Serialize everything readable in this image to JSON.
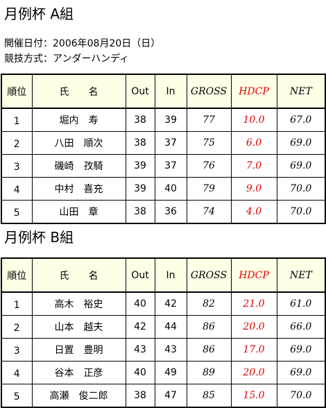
{
  "sections": [
    {
      "title": "月例杯 A組",
      "info": [
        "開催日付：2006年08月20日（日）",
        "競技方式：アンダーハンディ"
      ],
      "table": {
        "headers": [
          "順位",
          "氏　　名",
          "Out",
          "In",
          "GROSS",
          "HDCP",
          "NET"
        ],
        "rows": [
          [
            "1",
            "堀内　寿",
            "38",
            "39",
            "77",
            "10.0",
            "67.0"
          ],
          [
            "2",
            "八田　順次",
            "38",
            "37",
            "75",
            "6.0",
            "69.0"
          ],
          [
            "3",
            "磯崎　孜騎",
            "39",
            "37",
            "76",
            "7.0",
            "69.0"
          ],
          [
            "4",
            "中村　喜充",
            "39",
            "40",
            "79",
            "9.0",
            "70.0"
          ],
          [
            "5",
            "山田　章",
            "38",
            "36",
            "74",
            "4.0",
            "70.0"
          ]
        ]
      }
    },
    {
      "title": "月例杯 B組",
      "info": [],
      "table": {
        "headers": [
          "順位",
          "氏　　名",
          "Out",
          "In",
          "GROSS",
          "HDCP",
          "NET"
        ],
        "rows": [
          [
            "1",
            "高木　裕史",
            "40",
            "42",
            "82",
            "21.0",
            "61.0"
          ],
          [
            "2",
            "山本　越夫",
            "42",
            "44",
            "86",
            "20.0",
            "66.0"
          ],
          [
            "3",
            "日置　豊明",
            "43",
            "43",
            "86",
            "17.0",
            "69.0"
          ],
          [
            "4",
            "谷本　正彦",
            "40",
            "49",
            "89",
            "20.0",
            "69.0"
          ],
          [
            "5",
            "高瀬　俊二郎",
            "38",
            "47",
            "85",
            "15.0",
            "70.0"
          ]
        ]
      }
    }
  ]
}
